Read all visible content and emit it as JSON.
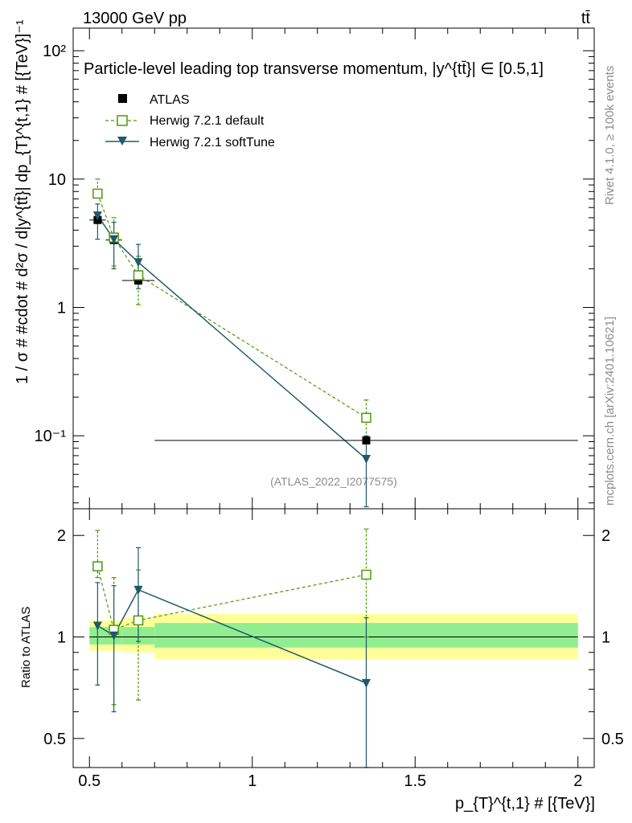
{
  "header": {
    "energy_label": "13000 GeV pp",
    "process_label": "tt̄",
    "side_label_rivet": "Rivet 4.1.0, ≥ 100k events",
    "side_label_mcplots": "mcplots.cern.ch [arXiv:2401.10621]",
    "analysis_id": "(ATLAS_2022_I2077575)"
  },
  "colors": {
    "data": "#000000",
    "default": "#4e9a06",
    "softtune": "#1f5a68",
    "band_inner": "#90ee90",
    "band_outer": "#ffff99"
  },
  "chart_data": [
    {
      "type": "scatter",
      "panel": "main",
      "title": "Particle-level leading top transverse momentum, |y^{tt̄}| ∈ [0.5,1]",
      "ylabel": "1 / σ # #cdot # d²σ / d|y^{tt̄}| dp_{T}^{t,1} # [{TeV}]⁻¹",
      "xlim": [
        0.45,
        2.05
      ],
      "ylim": [
        0.027,
        150
      ],
      "yscale": "log",
      "ytick_labels": [
        "10⁻¹",
        "1",
        "10",
        "10²"
      ],
      "legend": {
        "position": "top-left",
        "entries": [
          "ATLAS",
          "Herwig 7.2.1 default",
          "Herwig 7.2.1 softTune"
        ]
      },
      "series": [
        {
          "name": "ATLAS",
          "style": "square-filled",
          "x": [
            0.525,
            0.575,
            0.65,
            1.35
          ],
          "xerr": [
            0.025,
            0.025,
            0.05,
            0.65
          ],
          "y": [
            4.8,
            3.35,
            1.62,
            0.092
          ]
        },
        {
          "name": "Herwig 7.2.1 default",
          "style": "square-open-dashed",
          "x": [
            0.525,
            0.575,
            0.65,
            1.35
          ],
          "y": [
            7.7,
            3.5,
            1.78,
            0.138
          ],
          "yerr_lo": [
            7.4,
            2.1,
            1.05,
            0.09
          ],
          "yerr_hi": [
            10.0,
            5.0,
            2.5,
            0.19
          ]
        },
        {
          "name": "Herwig 7.2.1 softTune",
          "style": "triangle-down-solid",
          "x": [
            0.525,
            0.575,
            0.65,
            1.35
          ],
          "y": [
            5.2,
            3.4,
            2.25,
            0.066
          ],
          "yerr_lo": [
            3.4,
            2.0,
            1.4,
            0.028
          ],
          "yerr_hi": [
            6.4,
            4.6,
            3.1,
            0.1
          ]
        }
      ]
    },
    {
      "type": "scatter",
      "panel": "ratio",
      "ylabel": "Ratio to ATLAS",
      "xlabel": "p_{T}^{t,1} # [{TeV}]",
      "xlim": [
        0.45,
        2.05
      ],
      "ylim": [
        0.41,
        2.4
      ],
      "yscale": "log",
      "yticks": [
        0.5,
        1,
        2
      ],
      "ytick_labels": [
        "0.5",
        "1",
        "2"
      ],
      "xticks": [
        0.5,
        1,
        1.5,
        2
      ],
      "xtick_labels": [
        "0.5",
        "1",
        "1.5",
        "2"
      ],
      "bands": {
        "edges": [
          0.5,
          0.55,
          0.6,
          0.7,
          2.0
        ],
        "inner_lo": [
          0.95,
          0.95,
          0.95,
          0.93
        ],
        "inner_hi": [
          1.07,
          1.07,
          1.07,
          1.1
        ],
        "outer_lo": [
          0.91,
          0.91,
          0.9,
          0.86
        ],
        "outer_hi": [
          1.12,
          1.12,
          1.14,
          1.17
        ]
      },
      "series": [
        {
          "name": "Herwig 7.2.1 default",
          "style": "square-open-dashed",
          "x": [
            0.525,
            0.575,
            0.65,
            1.35
          ],
          "y": [
            1.62,
            1.05,
            1.12,
            1.53
          ],
          "yerr_lo": [
            1.5,
            0.63,
            0.65,
            1.0
          ],
          "yerr_hi": [
            2.07,
            1.5,
            1.58,
            2.09
          ]
        },
        {
          "name": "Herwig 7.2.1 softTune",
          "style": "triangle-down-solid",
          "x": [
            0.525,
            0.575,
            0.65,
            1.35
          ],
          "y": [
            1.08,
            1.01,
            1.38,
            0.73
          ],
          "yerr_lo": [
            0.72,
            0.6,
            0.97,
            0.4
          ],
          "yerr_hi": [
            1.45,
            1.42,
            1.84,
            1.14
          ]
        }
      ]
    }
  ]
}
